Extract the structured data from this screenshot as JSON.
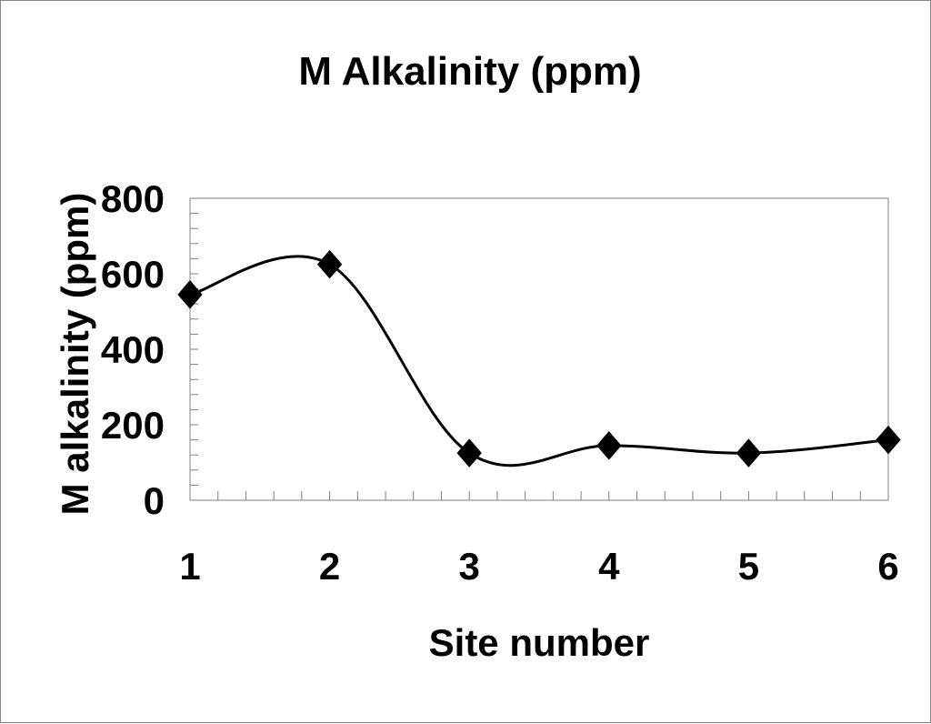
{
  "chart_data": {
    "type": "line",
    "title": "M Alkalinity (ppm)",
    "xlabel": "Site number",
    "ylabel": "M alkalinity (ppm)",
    "categories": [
      "1",
      "2",
      "3",
      "4",
      "5",
      "6"
    ],
    "x": [
      1,
      2,
      3,
      4,
      5,
      6
    ],
    "series": [
      {
        "values": [
          545,
          625,
          125,
          145,
          125,
          160
        ],
        "marker": "diamond",
        "smooth": true
      }
    ],
    "ylim": [
      0,
      800
    ],
    "yticks": [
      "0",
      "200",
      "400",
      "600",
      "800"
    ],
    "grid": false,
    "legend": "none",
    "colors": {
      "line": "#000000",
      "marker": "#000000",
      "plot_border": "#808080",
      "frame": "#888888"
    }
  }
}
